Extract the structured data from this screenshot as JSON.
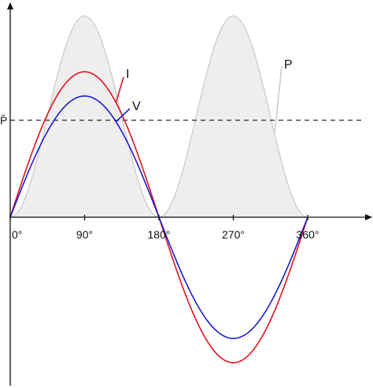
{
  "chart_data": {
    "type": "line",
    "x_tick_labels": [
      "0°",
      "90°",
      "180°",
      "270°",
      "360°"
    ],
    "x_ticks": [
      0,
      90,
      180,
      270,
      360
    ],
    "xlim": [
      0,
      420
    ],
    "ylim": [
      -1.5,
      1.7
    ],
    "grid": false,
    "colors": {
      "power_fill": "#eeeeee",
      "power_stroke": "#cccccc",
      "current": "#e0141e",
      "voltage": "#1c1cd0",
      "axis": "#111111"
    },
    "series": [
      {
        "key": "power",
        "name": "P",
        "function": "power-sin-squared",
        "amplitude": 1.66
      },
      {
        "key": "current",
        "name": "I",
        "function": "sine",
        "amplitude": 1.2
      },
      {
        "key": "voltage",
        "name": "V",
        "function": "sine",
        "amplitude": 1.0
      }
    ],
    "average_power": {
      "name": "P̄",
      "value": 0.8
    }
  }
}
